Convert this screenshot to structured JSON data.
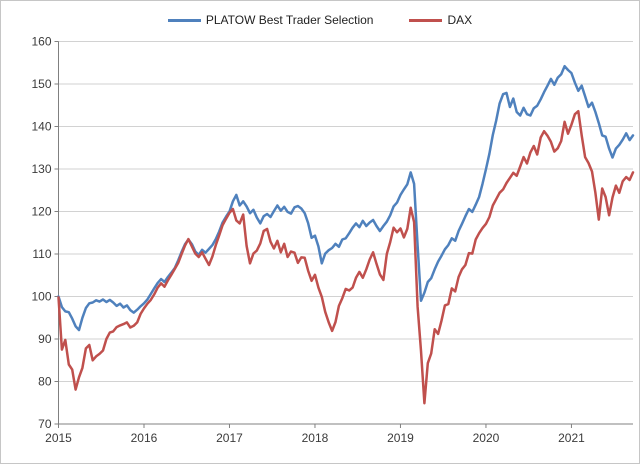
{
  "legend": {
    "items": [
      {
        "label": "PLATOW Best Trader Selection",
        "color": "#4F81BD"
      },
      {
        "label": "DAX",
        "color": "#C0504D"
      }
    ]
  },
  "chart_data": {
    "type": "line",
    "title": "",
    "xlabel": "",
    "ylabel": "",
    "xlim": [
      2015,
      2021.72
    ],
    "ylim": [
      70,
      160
    ],
    "x_ticks": [
      2015,
      2016,
      2017,
      2018,
      2019,
      2020,
      2021
    ],
    "y_ticks": [
      70,
      80,
      90,
      100,
      110,
      120,
      130,
      140,
      150,
      160
    ],
    "grid": "horizontal",
    "legend_position": "top-center",
    "x_start": 2015.0,
    "x_step": 0.04,
    "series": [
      {
        "name": "PLATOW Best Trader Selection",
        "color": "#4F81BD",
        "values": [
          100.0,
          97.5,
          96.5,
          96.3,
          94.8,
          93.0,
          92.1,
          95.0,
          97.3,
          98.4,
          98.6,
          99.1,
          98.8,
          99.3,
          98.7,
          99.2,
          98.6,
          97.8,
          98.3,
          97.4,
          97.9,
          96.8,
          96.2,
          96.9,
          97.7,
          98.4,
          99.3,
          100.6,
          101.9,
          103.2,
          104.1,
          103.4,
          104.6,
          105.6,
          106.7,
          108.5,
          110.5,
          112.3,
          113.4,
          112.3,
          110.6,
          109.8,
          111.0,
          110.3,
          111.2,
          112.1,
          113.5,
          115.3,
          117.4,
          118.8,
          120.0,
          122.4,
          123.9,
          121.4,
          122.4,
          121.2,
          119.6,
          120.4,
          118.6,
          117.2,
          118.9,
          119.4,
          118.7,
          120.1,
          121.4,
          120.2,
          121.1,
          119.9,
          119.5,
          121.0,
          121.3,
          120.7,
          119.6,
          117.3,
          113.8,
          114.3,
          111.8,
          107.8,
          110.1,
          110.9,
          111.4,
          112.4,
          111.7,
          113.4,
          113.7,
          114.9,
          116.2,
          117.2,
          116.3,
          117.8,
          116.6,
          117.4,
          118.0,
          116.6,
          115.4,
          116.6,
          117.6,
          119.1,
          121.2,
          122.1,
          123.9,
          125.2,
          126.4,
          129.2,
          126.5,
          112.0,
          99.0,
          100.9,
          103.4,
          104.3,
          106.4,
          108.2,
          109.6,
          111.1,
          112.1,
          113.7,
          113.1,
          115.4,
          117.1,
          118.9,
          120.6,
          119.9,
          121.6,
          123.4,
          126.5,
          130.0,
          133.6,
          138.0,
          141.4,
          145.4,
          147.6,
          147.9,
          144.6,
          146.6,
          143.4,
          142.6,
          144.4,
          142.9,
          142.6,
          144.3,
          144.9,
          146.4,
          148.1,
          149.6,
          151.2,
          149.8,
          151.5,
          152.3,
          154.2,
          153.3,
          152.6,
          150.3,
          148.4,
          149.6,
          147.1,
          144.6,
          145.6,
          143.4,
          140.8,
          137.9,
          137.6,
          134.8,
          132.7,
          134.8,
          135.7,
          136.9,
          138.4,
          136.8,
          137.9
        ]
      },
      {
        "name": "DAX",
        "color": "#C0504D",
        "values": [
          99.8,
          87.5,
          89.8,
          84.0,
          82.8,
          78.1,
          81.0,
          83.2,
          87.8,
          88.6,
          85.0,
          85.9,
          86.5,
          87.3,
          90.0,
          91.5,
          91.8,
          92.8,
          93.2,
          93.5,
          93.9,
          92.7,
          93.1,
          93.9,
          95.9,
          97.2,
          98.3,
          99.2,
          100.5,
          102.1,
          103.1,
          102.3,
          103.8,
          105.1,
          106.5,
          107.9,
          110.0,
          112.0,
          113.5,
          111.8,
          110.1,
          109.3,
          110.4,
          108.9,
          107.4,
          109.4,
          112.1,
          114.4,
          116.8,
          118.3,
          119.7,
          120.6,
          117.9,
          117.2,
          119.3,
          111.9,
          107.8,
          110.1,
          110.8,
          112.5,
          115.4,
          115.9,
          112.9,
          111.3,
          113.1,
          110.4,
          112.4,
          109.3,
          110.6,
          110.3,
          107.9,
          109.2,
          109.1,
          106.1,
          103.7,
          105.1,
          102.1,
          99.9,
          96.4,
          93.9,
          91.9,
          94.0,
          97.8,
          99.6,
          101.8,
          101.4,
          102.1,
          104.4,
          105.8,
          104.4,
          106.4,
          108.7,
          110.4,
          107.7,
          105.2,
          103.9,
          110.0,
          112.8,
          116.2,
          115.1,
          116.0,
          113.9,
          115.9,
          120.9,
          117.5,
          97.6,
          87.2,
          74.9,
          84.3,
          86.6,
          92.3,
          91.2,
          94.3,
          97.9,
          98.2,
          101.9,
          101.2,
          104.6,
          106.4,
          107.4,
          110.2,
          110.1,
          113.4,
          114.9,
          116.1,
          117.1,
          118.7,
          121.4,
          122.9,
          124.4,
          125.2,
          126.7,
          127.9,
          129.1,
          128.4,
          130.6,
          132.8,
          131.3,
          133.9,
          135.4,
          133.4,
          137.4,
          138.9,
          137.8,
          136.4,
          134.1,
          134.9,
          136.6,
          141.1,
          138.3,
          140.4,
          142.9,
          143.6,
          137.9,
          132.8,
          131.4,
          129.4,
          124.4,
          118.1,
          125.4,
          123.4,
          119.1,
          123.3,
          126.1,
          124.4,
          127.1,
          128.1,
          127.4,
          129.2
        ]
      }
    ]
  },
  "colors": {
    "axis": "#808080",
    "gridline": "#d2d2d2",
    "tick_label": "#3b3b3b",
    "background": "#ffffff",
    "border": "#c6c6c6"
  }
}
